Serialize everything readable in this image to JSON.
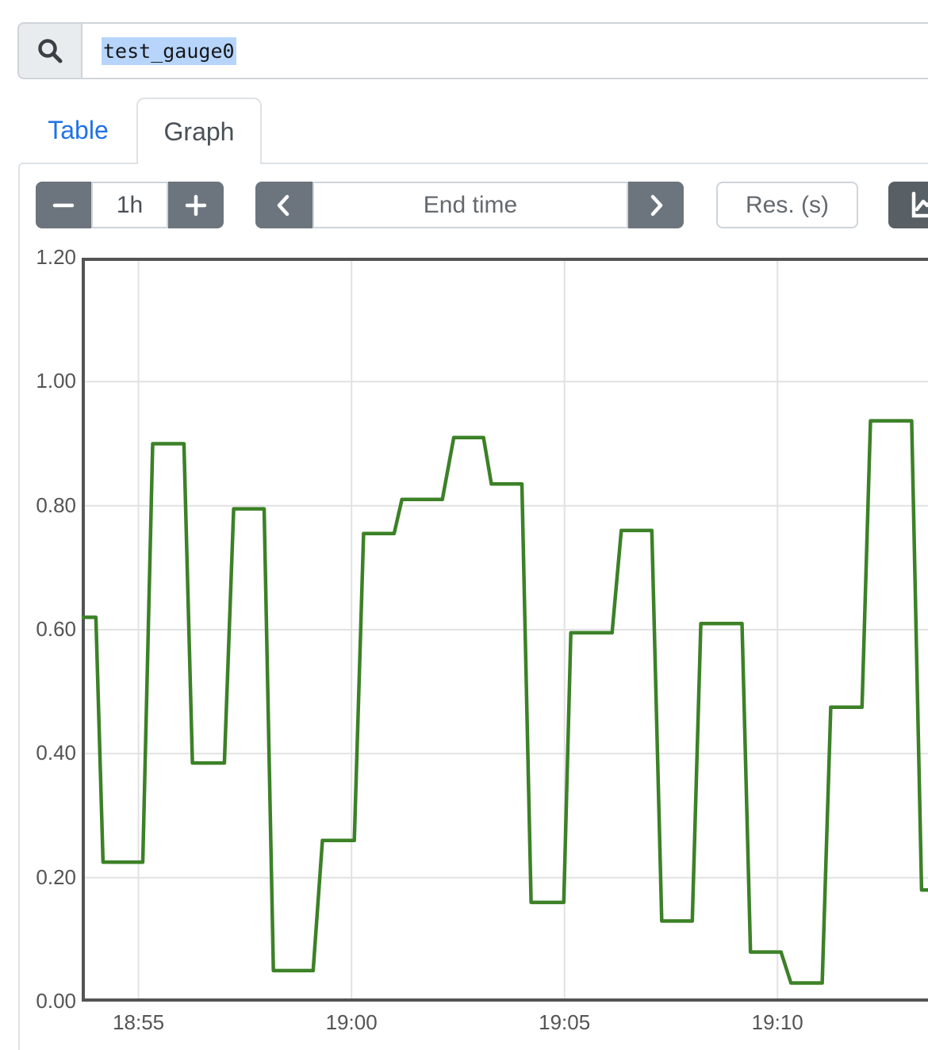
{
  "search": {
    "value": "test_gauge0",
    "selection_color": "#b7d5fb"
  },
  "tabs": {
    "table_label": "Table",
    "graph_label": "Graph",
    "active": "Graph"
  },
  "toolbar": {
    "duration_decrease_label": "−",
    "duration_value": "1h",
    "duration_increase_label": "+",
    "end_time_placeholder": "End time",
    "resolution_placeholder": "Res. (s)"
  },
  "colors": {
    "accent_blue": "#2172e5",
    "button_gray": "#6c757d",
    "stacked_button_gray": "#585f65",
    "input_border": "#ced4da",
    "card_border": "#dee2e6",
    "addon_bg": "#e9ecef",
    "series_green": "#3c8127",
    "grid_gray": "#e2e2e2",
    "axis_dark": "#545454"
  },
  "chart_data": {
    "type": "line",
    "style": "step-like line (gauge samples)",
    "series_name": "test_gauge0",
    "series_color": "#3c8127",
    "grid_color": "#e2e2e2",
    "axis_color": "#545454",
    "grid": true,
    "legend_position": "none",
    "xlabel": "",
    "ylabel": "",
    "ylim": [
      0,
      1.2
    ],
    "x_start": "18:53:40",
    "x_end": "19:13:32",
    "y_ticks": [
      {
        "label": "0.00",
        "v": 0.0
      },
      {
        "label": "0.20",
        "v": 0.2
      },
      {
        "label": "0.40",
        "v": 0.4
      },
      {
        "label": "0.60",
        "v": 0.6
      },
      {
        "label": "0.80",
        "v": 0.8
      },
      {
        "label": "1.00",
        "v": 1.0
      },
      {
        "label": "1.20",
        "v": 1.2
      }
    ],
    "y_gridlines": [
      0.2,
      0.4,
      0.6,
      0.8,
      1.0
    ],
    "x_ticks": [
      {
        "label": "18:55",
        "time": "18:55:00"
      },
      {
        "label": "19:00",
        "time": "19:00:00"
      },
      {
        "label": "19:05",
        "time": "19:05:00"
      },
      {
        "label": "19:10",
        "time": "19:10:00"
      }
    ],
    "points": [
      {
        "t": "18:53:40",
        "v": 0.62
      },
      {
        "t": "18:54:00",
        "v": 0.62
      },
      {
        "t": "18:54:10",
        "v": 0.225
      },
      {
        "t": "18:55:06",
        "v": 0.225
      },
      {
        "t": "18:55:20",
        "v": 0.9
      },
      {
        "t": "18:56:04",
        "v": 0.9
      },
      {
        "t": "18:56:16",
        "v": 0.385
      },
      {
        "t": "18:57:01",
        "v": 0.385
      },
      {
        "t": "18:57:14",
        "v": 0.795
      },
      {
        "t": "18:57:57",
        "v": 0.795
      },
      {
        "t": "18:58:10",
        "v": 0.05
      },
      {
        "t": "18:59:06",
        "v": 0.05
      },
      {
        "t": "18:59:19",
        "v": 0.26
      },
      {
        "t": "19:00:04",
        "v": 0.26
      },
      {
        "t": "19:00:17",
        "v": 0.755
      },
      {
        "t": "19:01:00",
        "v": 0.755
      },
      {
        "t": "19:01:11",
        "v": 0.81
      },
      {
        "t": "19:02:08",
        "v": 0.81
      },
      {
        "t": "19:02:24",
        "v": 0.91
      },
      {
        "t": "19:03:06",
        "v": 0.91
      },
      {
        "t": "19:03:17",
        "v": 0.835
      },
      {
        "t": "19:04:00",
        "v": 0.835
      },
      {
        "t": "19:04:13",
        "v": 0.16
      },
      {
        "t": "19:04:59",
        "v": 0.16
      },
      {
        "t": "19:05:09",
        "v": 0.595
      },
      {
        "t": "19:06:07",
        "v": 0.595
      },
      {
        "t": "19:06:20",
        "v": 0.76
      },
      {
        "t": "19:07:03",
        "v": 0.76
      },
      {
        "t": "19:07:17",
        "v": 0.13
      },
      {
        "t": "19:08:00",
        "v": 0.13
      },
      {
        "t": "19:08:12",
        "v": 0.61
      },
      {
        "t": "19:09:10",
        "v": 0.61
      },
      {
        "t": "19:09:22",
        "v": 0.08
      },
      {
        "t": "19:10:05",
        "v": 0.08
      },
      {
        "t": "19:10:19",
        "v": 0.03
      },
      {
        "t": "19:11:03",
        "v": 0.03
      },
      {
        "t": "19:11:15",
        "v": 0.475
      },
      {
        "t": "19:11:59",
        "v": 0.475
      },
      {
        "t": "19:12:11",
        "v": 0.937
      },
      {
        "t": "19:13:09",
        "v": 0.937
      },
      {
        "t": "19:13:23",
        "v": 0.18
      },
      {
        "t": "19:13:32",
        "v": 0.18
      }
    ]
  }
}
